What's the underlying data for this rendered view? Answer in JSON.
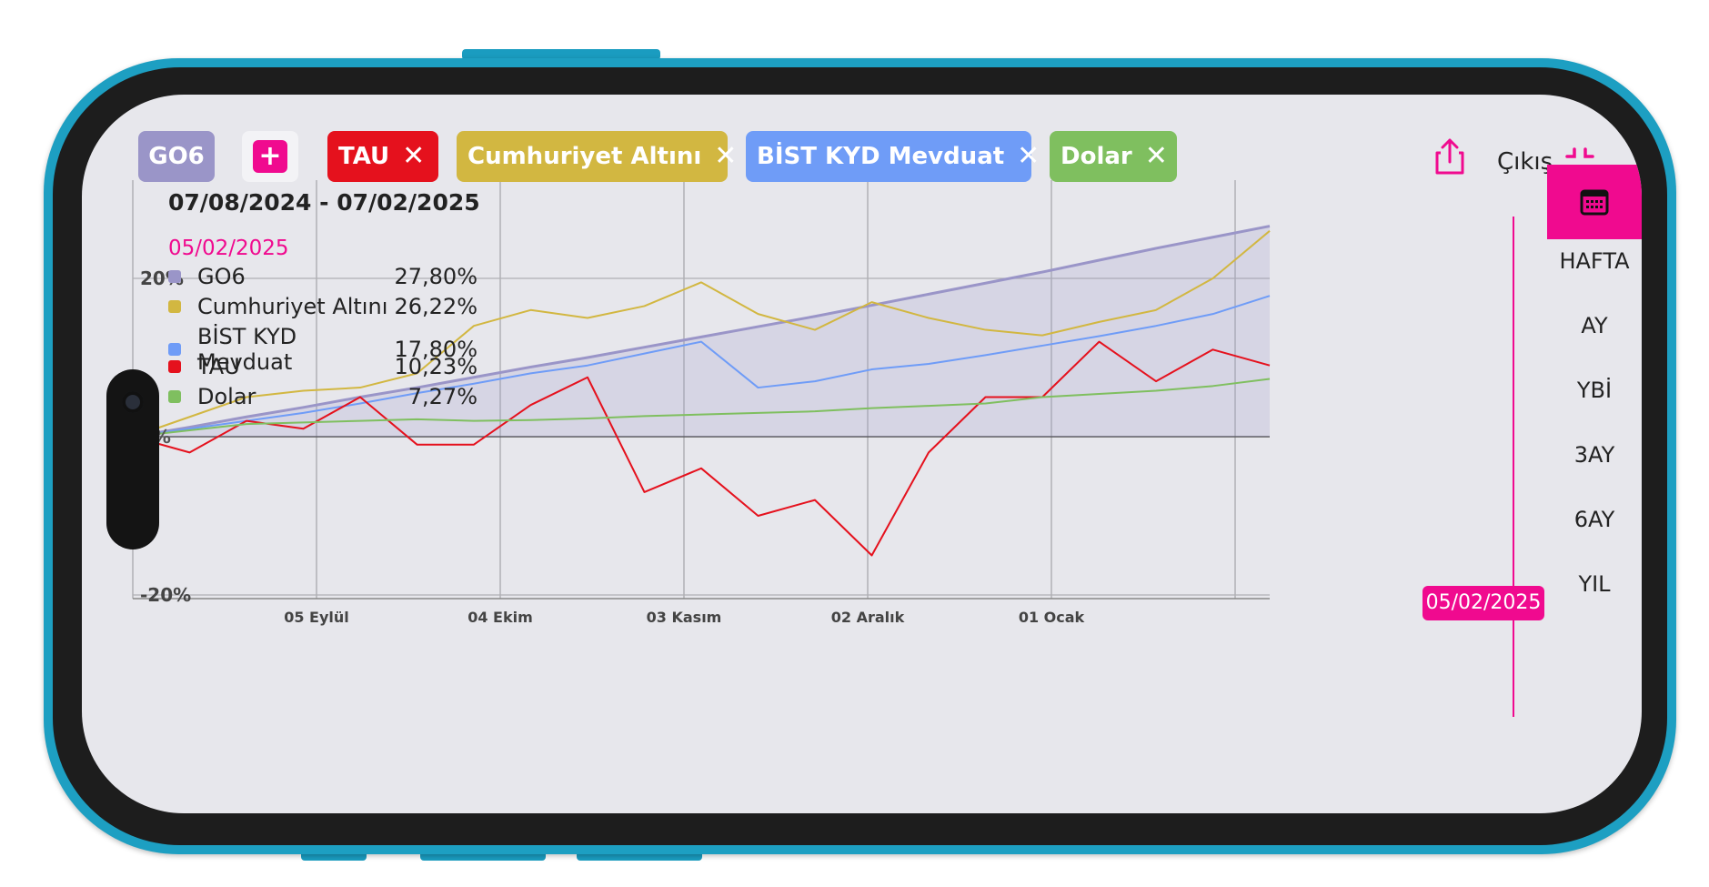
{
  "tags": {
    "main": "GO6",
    "add": "+",
    "items": [
      {
        "label": "TAU",
        "color": "#e5111d"
      },
      {
        "label": "Cumhuriyet Altını",
        "color": "#d2b741"
      },
      {
        "label": "BİST KYD Mevduat",
        "color": "#6f9cf7"
      },
      {
        "label": "Dolar",
        "color": "#7fbf5f"
      }
    ],
    "close_symbol": "✕"
  },
  "toolbar": {
    "share_icon": "share-icon",
    "exit_label": "Çıkış",
    "collapse_icon": "collapse-icon"
  },
  "range": {
    "date_range": "07/08/2024 - 07/02/2025",
    "selected_date": "05/02/2025",
    "cursor_badge": "05/02/2025"
  },
  "legend": [
    {
      "name": "GO6",
      "value": "27,80%",
      "color": "#9a95c8"
    },
    {
      "name": "Cumhuriyet Altını",
      "value": "26,22%",
      "color": "#d2b741"
    },
    {
      "name": "BİST KYD Mevduat",
      "value": "17,80%",
      "color": "#6f9cf7"
    },
    {
      "name": "TAU",
      "value": "10,23%",
      "color": "#e5111d"
    },
    {
      "name": "Dolar",
      "value": "7,27%",
      "color": "#7fbf5f"
    }
  ],
  "periods": [
    "HAFTA",
    "AY",
    "YBİ",
    "3AY",
    "6AY",
    "YIL"
  ],
  "calendar_icon": "calendar-icon",
  "chart_data": {
    "type": "line",
    "x_tick_labels": [
      "05 Eylül",
      "04 Ekim",
      "03 Kasım",
      "02 Aralık",
      "01 Ocak"
    ],
    "y_tick_labels": [
      "20%",
      "0%",
      "-20%"
    ],
    "ylim": [
      -20,
      27
    ],
    "grid": true,
    "x": [
      0,
      5,
      10,
      15,
      20,
      25,
      30,
      35,
      40,
      45,
      50,
      55,
      60,
      65,
      70,
      75,
      80,
      85,
      90,
      95,
      100
    ],
    "series": [
      {
        "name": "GO6",
        "color": "#9a95c8",
        "fill": true,
        "values": [
          0,
          1.2,
          2.5,
          3.7,
          5.0,
          6.2,
          7.5,
          8.8,
          10.0,
          11.3,
          12.6,
          13.9,
          15.2,
          16.6,
          18.0,
          19.4,
          20.8,
          22.3,
          23.8,
          25.2,
          26.6
        ]
      },
      {
        "name": "Cumhuriyet Altını",
        "color": "#d2b741",
        "fill": false,
        "values": [
          0,
          2.5,
          5.0,
          5.8,
          6.2,
          8.0,
          14.0,
          16.0,
          15.0,
          16.5,
          19.5,
          15.5,
          13.5,
          17.0,
          15.0,
          13.5,
          12.8,
          14.5,
          16.0,
          20.0,
          26.0
        ]
      },
      {
        "name": "BİST KYD Mevduat",
        "color": "#6f9cf7",
        "fill": false,
        "values": [
          0,
          1.0,
          2.0,
          3.0,
          4.2,
          5.5,
          6.7,
          8.0,
          9.0,
          10.5,
          12.0,
          6.2,
          7.0,
          8.5,
          9.2,
          10.3,
          11.5,
          12.7,
          14.0,
          15.5,
          17.8
        ]
      },
      {
        "name": "TAU",
        "color": "#e5111d",
        "fill": false,
        "values": [
          0,
          -2.0,
          2.0,
          1.0,
          5.0,
          -1.0,
          -1.0,
          4.0,
          7.5,
          -7.0,
          -4.0,
          -10.0,
          -8.0,
          -15.0,
          -2.0,
          5.0,
          5.0,
          12.0,
          7.0,
          11.0,
          9.0
        ]
      },
      {
        "name": "Dolar",
        "color": "#7fbf5f",
        "fill": false,
        "values": [
          0,
          0.8,
          1.6,
          1.8,
          2.0,
          2.2,
          2.0,
          2.1,
          2.3,
          2.6,
          2.8,
          3.0,
          3.2,
          3.6,
          3.9,
          4.2,
          5.0,
          5.4,
          5.8,
          6.4,
          7.3
        ]
      }
    ],
    "cursor_label": "05/02/2025"
  }
}
